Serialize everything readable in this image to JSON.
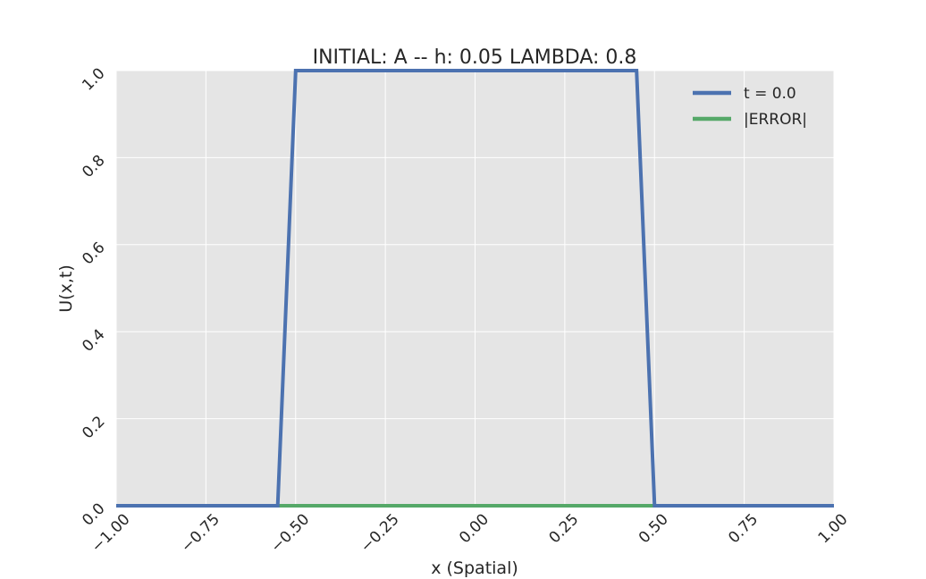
{
  "chart_data": {
    "type": "line",
    "title": "INITIAL: A -- h: 0.05 LAMBDA: 0.8",
    "xlabel": "x (Spatial)",
    "ylabel": "U(x,t)",
    "xlim": [
      -1.0,
      1.0
    ],
    "ylim": [
      0.0,
      1.0
    ],
    "xticks": [
      "−1.00",
      "−0.75",
      "−0.50",
      "−0.25",
      "0.00",
      "0.25",
      "0.50",
      "0.75",
      "1.00"
    ],
    "yticks": [
      "0.0",
      "0.2",
      "0.4",
      "0.6",
      "0.8",
      "1.0"
    ],
    "grid": true,
    "legend_position": "top-right",
    "series": [
      {
        "name": "t = 0.0",
        "color": "#4c72b0",
        "x": [
          -1.0,
          -0.55,
          -0.5,
          0.45,
          0.5,
          1.0
        ],
        "y": [
          0.0,
          0.0,
          1.0,
          1.0,
          0.0,
          0.0
        ]
      },
      {
        "name": "|ERROR|",
        "color": "#55a868",
        "x": [
          -1.0,
          1.0
        ],
        "y": [
          0.0,
          0.0
        ]
      }
    ]
  }
}
